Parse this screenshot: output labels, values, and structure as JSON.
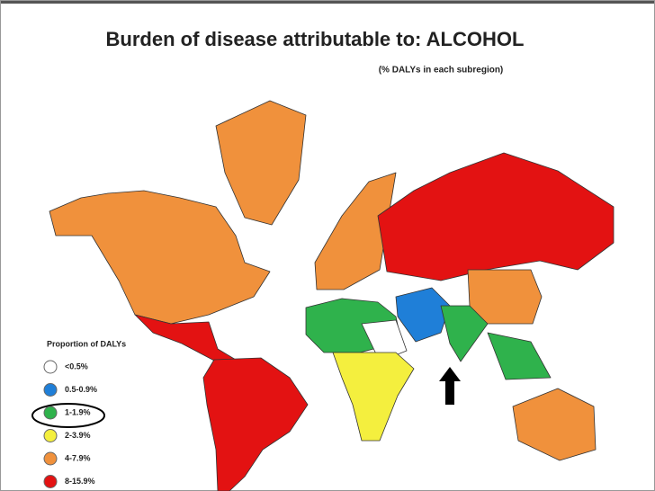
{
  "header": {
    "title": "Burden of disease attributable to: ALCOHOL",
    "subtitle": "(% DALYs in each subregion)"
  },
  "legend": {
    "title": "Proportion of DALYs",
    "items": [
      {
        "label": "<0.5%",
        "color": "#ffffff"
      },
      {
        "label": "0.5-0.9%",
        "color": "#1f7fd8"
      },
      {
        "label": "1-1.9%",
        "color": "#2fb24c"
      },
      {
        "label": "2-3.9%",
        "color": "#f4ef3e"
      },
      {
        "label": "4-7.9%",
        "color": "#f0913c"
      },
      {
        "label": "8-15.9%",
        "color": "#e31212"
      }
    ]
  }
}
